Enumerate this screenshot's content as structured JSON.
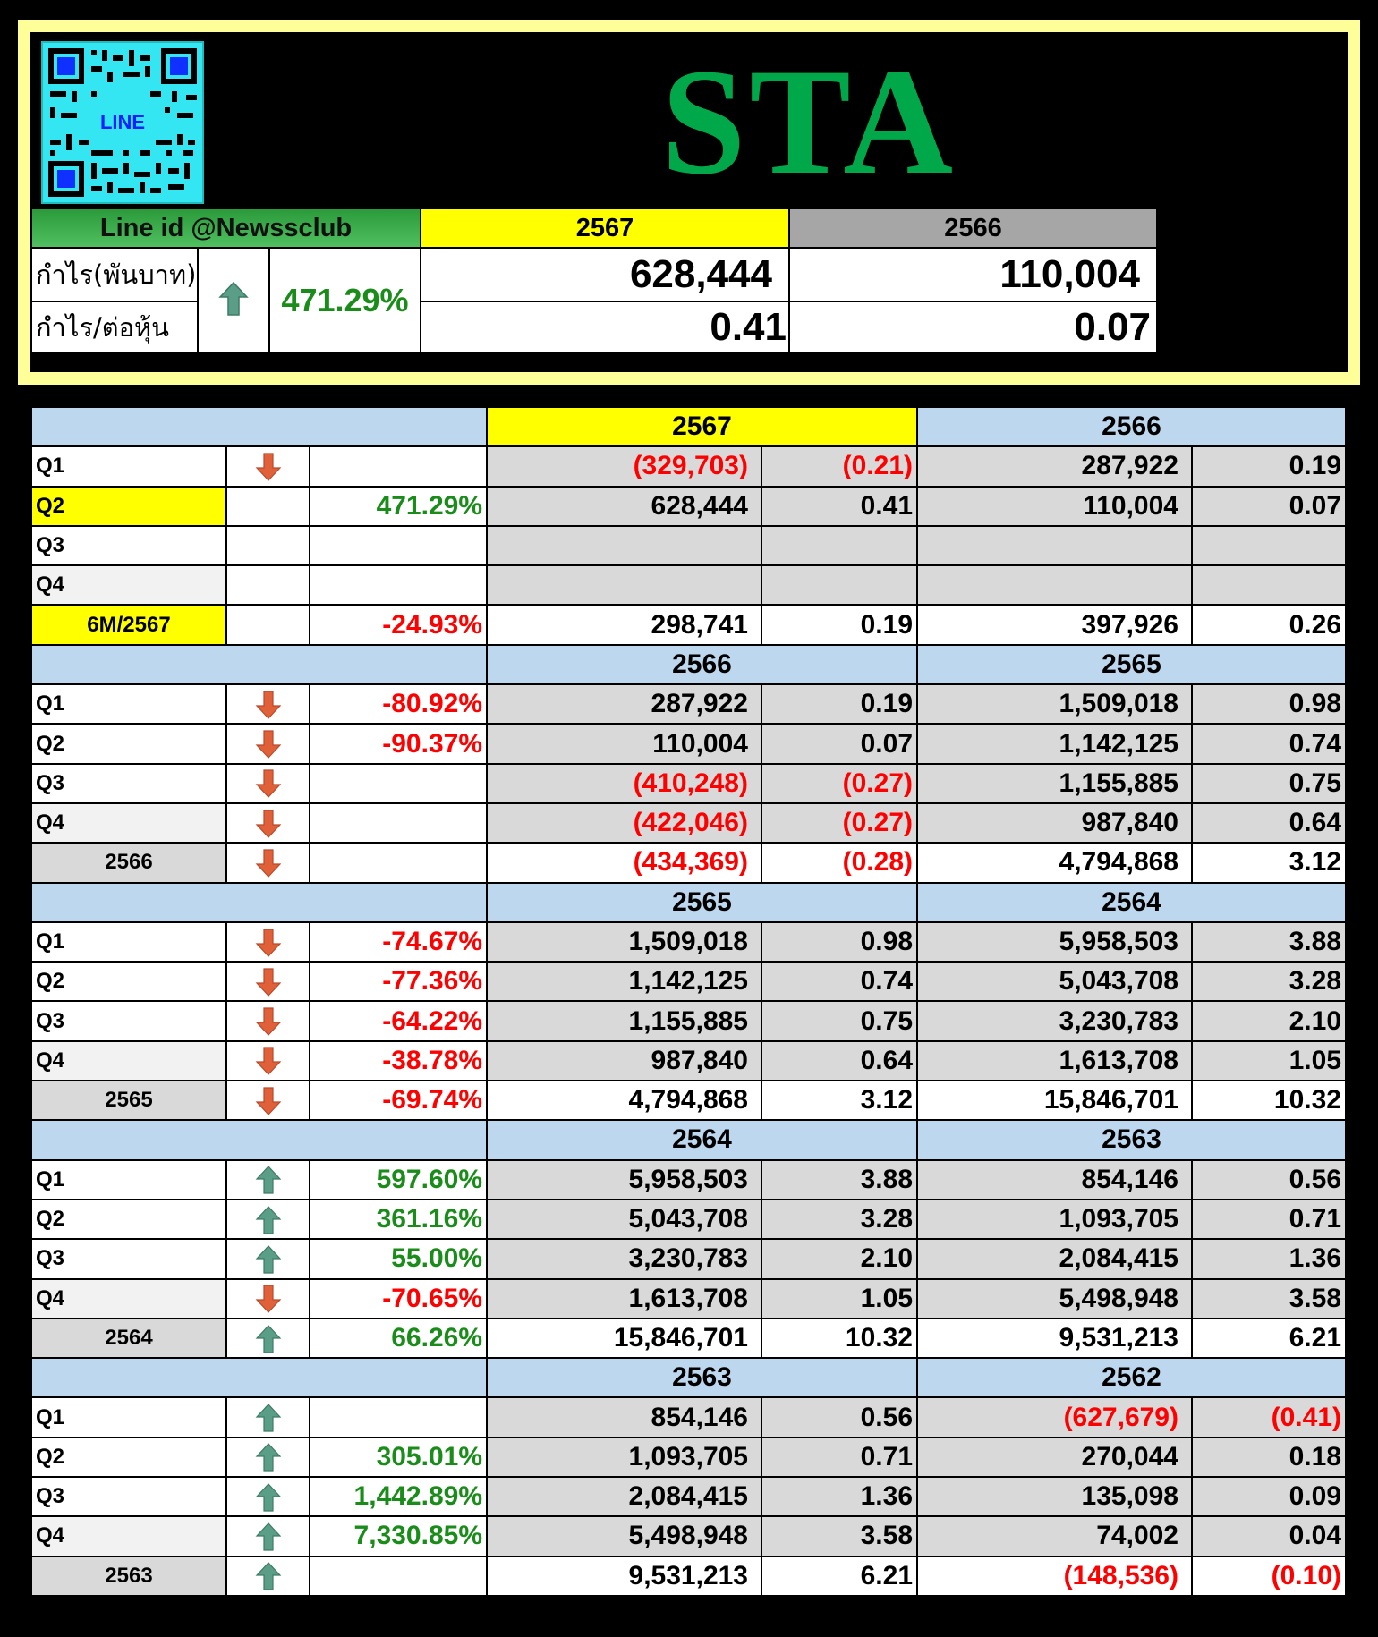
{
  "header": {
    "qr_label": "LINE",
    "symbol": "STA",
    "line_id": "Line id @Newssclub",
    "year_current": "2567",
    "year_prev": "2566",
    "profit_label": "กำไร(พันบาท)",
    "eps_label": "กำไร/ต่อหุ้น",
    "change_icon": "up-arrow-icon",
    "change_pct": "471.29%",
    "profit_current": "628,444",
    "profit_prev": "110,004",
    "eps_current": "0.41",
    "eps_prev": "0.07"
  },
  "colors": {
    "accent_green": "#00a84a",
    "up_arrow": "#5a9e88",
    "down_arrow": "#e0603a",
    "negative": "#ff0000",
    "positive_pct": "#1a8c1a",
    "section_header": "#bdd7ee",
    "highlight": "#ffff00"
  },
  "sections": [
    {
      "year_a": "2567",
      "year_b": "2566",
      "highlight_a": true,
      "rows": [
        {
          "label": "Q1",
          "arrow": "down",
          "pct": "",
          "v1": "(329,703)",
          "e1": "(0.21)",
          "v2": "287,922",
          "e2": "0.19"
        },
        {
          "label": "Q2",
          "arrow": "",
          "pct": "471.29%",
          "v1": "628,444",
          "e1": "0.41",
          "v2": "110,004",
          "e2": "0.07",
          "label_style": "yel"
        },
        {
          "label": "Q3",
          "arrow": "",
          "pct": "",
          "v1": "",
          "e1": "",
          "v2": "",
          "e2": ""
        },
        {
          "label": "Q4",
          "arrow": "",
          "pct": "",
          "v1": "",
          "e1": "",
          "v2": "",
          "e2": "",
          "label_style": "alt"
        }
      ],
      "total": {
        "label": "6M/2567",
        "arrow": "",
        "pct": "-24.93%",
        "v1": "298,741",
        "e1": "0.19",
        "v2": "397,926",
        "e2": "0.26",
        "label_style": "yel-c"
      }
    },
    {
      "year_a": "2566",
      "year_b": "2565",
      "rows": [
        {
          "label": "Q1",
          "arrow": "down",
          "pct": "-80.92%",
          "v1": "287,922",
          "e1": "0.19",
          "v2": "1,509,018",
          "e2": "0.98"
        },
        {
          "label": "Q2",
          "arrow": "down",
          "pct": "-90.37%",
          "v1": "110,004",
          "e1": "0.07",
          "v2": "1,142,125",
          "e2": "0.74"
        },
        {
          "label": "Q3",
          "arrow": "down",
          "pct": "",
          "v1": "(410,248)",
          "e1": "(0.27)",
          "v2": "1,155,885",
          "e2": "0.75"
        },
        {
          "label": "Q4",
          "arrow": "down",
          "pct": "",
          "v1": "(422,046)",
          "e1": "(0.27)",
          "v2": "987,840",
          "e2": "0.64",
          "label_style": "alt"
        }
      ],
      "total": {
        "label": "2566",
        "arrow": "down",
        "pct": "",
        "v1": "(434,369)",
        "e1": "(0.28)",
        "v2": "4,794,868",
        "e2": "3.12"
      }
    },
    {
      "year_a": "2565",
      "year_b": "2564",
      "rows": [
        {
          "label": "Q1",
          "arrow": "down",
          "pct": "-74.67%",
          "v1": "1,509,018",
          "e1": "0.98",
          "v2": "5,958,503",
          "e2": "3.88"
        },
        {
          "label": "Q2",
          "arrow": "down",
          "pct": "-77.36%",
          "v1": "1,142,125",
          "e1": "0.74",
          "v2": "5,043,708",
          "e2": "3.28"
        },
        {
          "label": "Q3",
          "arrow": "down",
          "pct": "-64.22%",
          "v1": "1,155,885",
          "e1": "0.75",
          "v2": "3,230,783",
          "e2": "2.10"
        },
        {
          "label": "Q4",
          "arrow": "down",
          "pct": "-38.78%",
          "v1": "987,840",
          "e1": "0.64",
          "v2": "1,613,708",
          "e2": "1.05",
          "label_style": "alt"
        }
      ],
      "total": {
        "label": "2565",
        "arrow": "down",
        "pct": "-69.74%",
        "v1": "4,794,868",
        "e1": "3.12",
        "v2": "15,846,701",
        "e2": "10.32"
      }
    },
    {
      "year_a": "2564",
      "year_b": "2563",
      "rows": [
        {
          "label": "Q1",
          "arrow": "up",
          "pct": "597.60%",
          "v1": "5,958,503",
          "e1": "3.88",
          "v2": "854,146",
          "e2": "0.56"
        },
        {
          "label": "Q2",
          "arrow": "up",
          "pct": "361.16%",
          "v1": "5,043,708",
          "e1": "3.28",
          "v2": "1,093,705",
          "e2": "0.71"
        },
        {
          "label": "Q3",
          "arrow": "up",
          "pct": "55.00%",
          "v1": "3,230,783",
          "e1": "2.10",
          "v2": "2,084,415",
          "e2": "1.36"
        },
        {
          "label": "Q4",
          "arrow": "down",
          "pct": "-70.65%",
          "v1": "1,613,708",
          "e1": "1.05",
          "v2": "5,498,948",
          "e2": "3.58",
          "label_style": "alt"
        }
      ],
      "total": {
        "label": "2564",
        "arrow": "up",
        "pct": "66.26%",
        "v1": "15,846,701",
        "e1": "10.32",
        "v2": "9,531,213",
        "e2": "6.21"
      }
    },
    {
      "year_a": "2563",
      "year_b": "2562",
      "rows": [
        {
          "label": "Q1",
          "arrow": "up",
          "pct": "",
          "v1": "854,146",
          "e1": "0.56",
          "v2": "(627,679)",
          "e2": "(0.41)"
        },
        {
          "label": "Q2",
          "arrow": "up",
          "pct": "305.01%",
          "v1": "1,093,705",
          "e1": "0.71",
          "v2": "270,044",
          "e2": "0.18"
        },
        {
          "label": "Q3",
          "arrow": "up",
          "pct": "1,442.89%",
          "v1": "2,084,415",
          "e1": "1.36",
          "v2": "135,098",
          "e2": "0.09"
        },
        {
          "label": "Q4",
          "arrow": "up",
          "pct": "7,330.85%",
          "v1": "5,498,948",
          "e1": "3.58",
          "v2": "74,002",
          "e2": "0.04",
          "label_style": "alt"
        }
      ],
      "total": {
        "label": "2563",
        "arrow": "up",
        "pct": "",
        "v1": "9,531,213",
        "e1": "6.21",
        "v2": "(148,536)",
        "e2": "(0.10)"
      }
    }
  ]
}
